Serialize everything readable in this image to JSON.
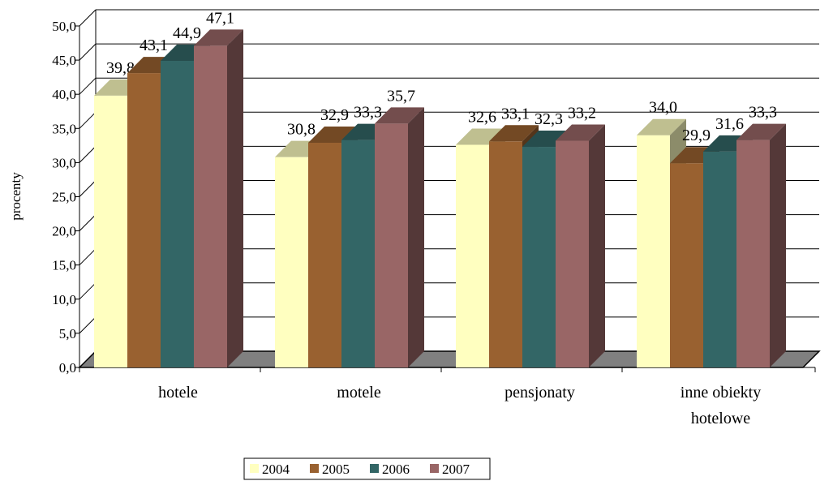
{
  "chart_data": {
    "type": "bar",
    "title": "",
    "xlabel": "",
    "ylabel": "procenty",
    "ylim": [
      0,
      50
    ],
    "ytick_step": 5,
    "ytick_labels": [
      "0,0",
      "5,0",
      "10,0",
      "15,0",
      "20,0",
      "25,0",
      "30,0",
      "35,0",
      "40,0",
      "45,0",
      "50,0"
    ],
    "categories": [
      [
        "hotele"
      ],
      [
        "motele"
      ],
      [
        "pensjonaty"
      ],
      [
        "inne obiekty",
        "hotelowe"
      ]
    ],
    "series": [
      {
        "name": "2004",
        "color": "#FFFFC0",
        "values": [
          39.8,
          30.8,
          32.6,
          34.0
        ],
        "labels": [
          "39,8",
          "30,8",
          "32,6",
          "34,0"
        ]
      },
      {
        "name": "2005",
        "color": "#996130",
        "values": [
          43.1,
          32.9,
          33.1,
          29.9
        ],
        "labels": [
          "43,1",
          "32,9",
          "33,1",
          "29,9"
        ]
      },
      {
        "name": "2006",
        "color": "#336666",
        "values": [
          44.9,
          33.3,
          32.3,
          31.6
        ],
        "labels": [
          "44,9",
          "33,3",
          "32,3",
          "31,6"
        ]
      },
      {
        "name": "2007",
        "color": "#996666",
        "values": [
          47.1,
          35.7,
          33.2,
          33.3
        ],
        "labels": [
          "47,1",
          "35,7",
          "33,2",
          "33,3"
        ]
      }
    ],
    "grid": true,
    "legend": "bottom",
    "three_d": true
  }
}
